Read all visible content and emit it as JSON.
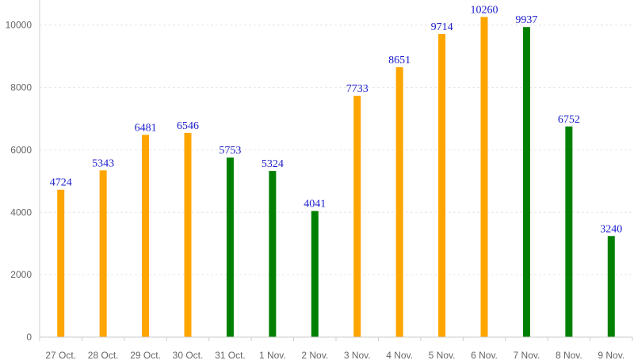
{
  "chart_data": {
    "type": "bar",
    "title": "",
    "xlabel": "",
    "ylabel": "",
    "categories": [
      "27 Oct.",
      "28 Oct.",
      "29 Oct.",
      "30 Oct.",
      "31 Oct.",
      "1 Nov.",
      "2 Nov.",
      "3 Nov.",
      "4 Nov.",
      "5 Nov.",
      "6 Nov.",
      "7 Nov.",
      "8 Nov.",
      "9 Nov."
    ],
    "values": [
      4724,
      5343,
      6481,
      6546,
      5753,
      5324,
      4041,
      7733,
      8651,
      9714,
      10260,
      9937,
      6752,
      3240
    ],
    "bar_colors": [
      "#FFA500",
      "#FFA500",
      "#FFA500",
      "#FFA500",
      "#008000",
      "#008000",
      "#008000",
      "#FFA500",
      "#FFA500",
      "#FFA500",
      "#FFA500",
      "#008000",
      "#008000",
      "#008000"
    ],
    "ylim": [
      0,
      10500
    ],
    "yticks": [
      0,
      2000,
      4000,
      6000,
      8000,
      10000
    ],
    "grid": true,
    "data_labels": true,
    "label_color": "#1a1acc",
    "grid_color": "#e6e6e6",
    "axis_color": "#cccccc"
  }
}
